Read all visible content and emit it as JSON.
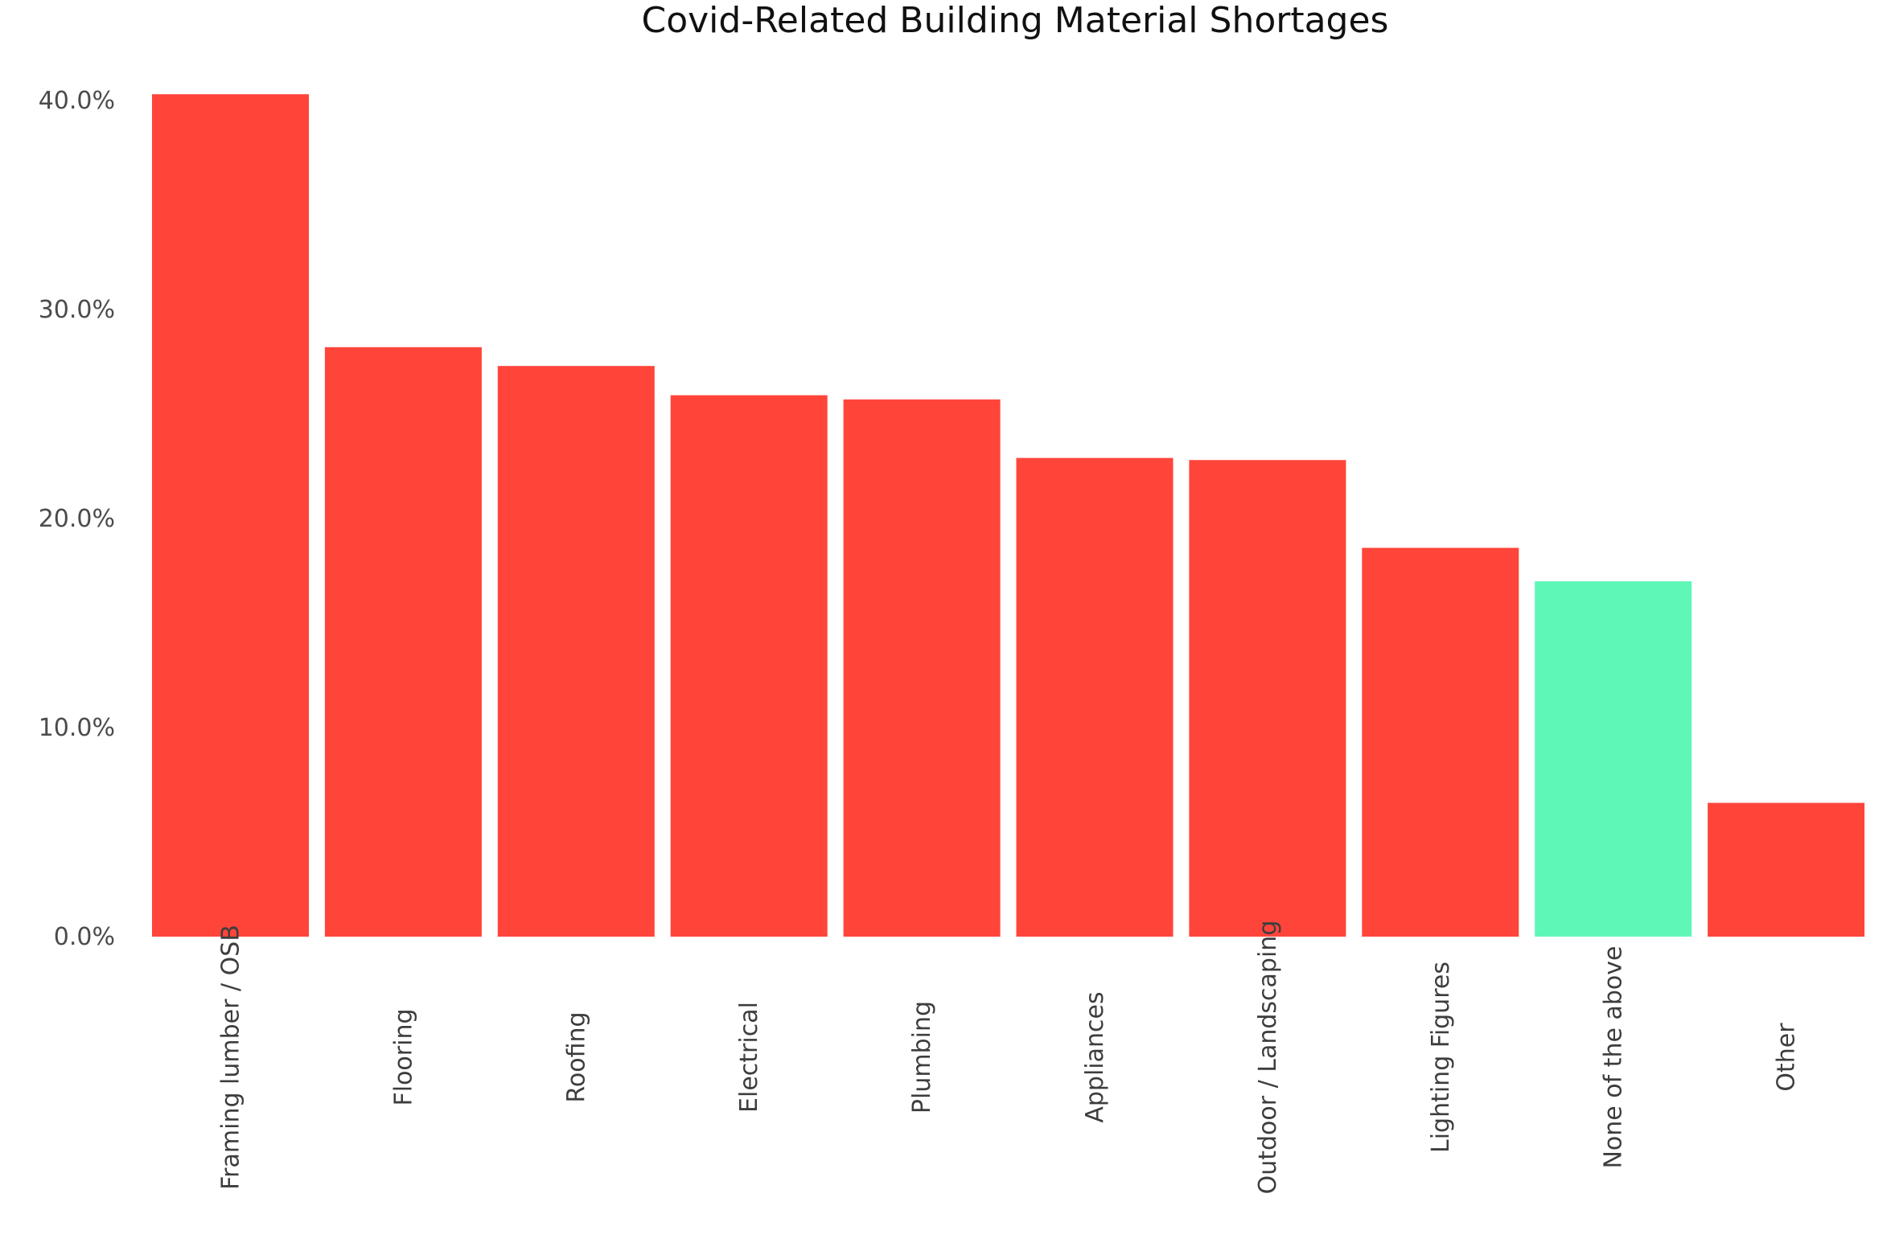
{
  "chart_data": {
    "type": "bar",
    "title": "Covid-Related Building Material Shortages",
    "xlabel": "",
    "ylabel": "",
    "categories": [
      "Framing lumber / OSB",
      "Flooring",
      "Roofing",
      "Electrical",
      "Plumbing",
      "Appliances",
      "Outdoor / Landscaping",
      "Lighting Figures",
      "None of the above",
      "Other"
    ],
    "values": [
      40.3,
      28.2,
      27.3,
      25.9,
      25.7,
      22.9,
      22.8,
      18.6,
      17.0,
      6.4
    ],
    "ylim": [
      0,
      40
    ],
    "y_ticks": [
      "0.0%",
      "10.0%",
      "20.0%",
      "30.0%",
      "40.0%"
    ],
    "y_tick_values": [
      0,
      10,
      20,
      30,
      40
    ],
    "grid": false,
    "legend": "none",
    "colors": {
      "default_bar": "#FF453A",
      "highlight_bar": "#5FF7B8"
    },
    "highlight_index": 8
  }
}
